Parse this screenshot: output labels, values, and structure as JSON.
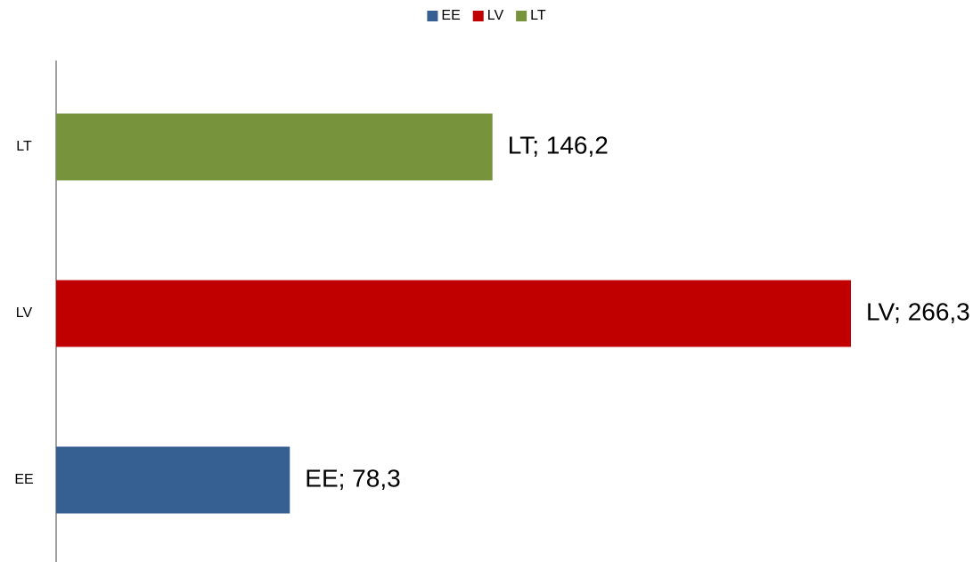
{
  "chart_data": {
    "type": "barh",
    "categories": [
      "EE",
      "LV",
      "LT"
    ],
    "values": [
      78.3,
      266.3,
      146.2
    ],
    "value_labels": [
      "EE; 78,3",
      "LV; 266,3",
      "LT; 146,2"
    ],
    "colors": [
      "#376092",
      "#c00000",
      "#77933c"
    ],
    "legend": "top"
  }
}
